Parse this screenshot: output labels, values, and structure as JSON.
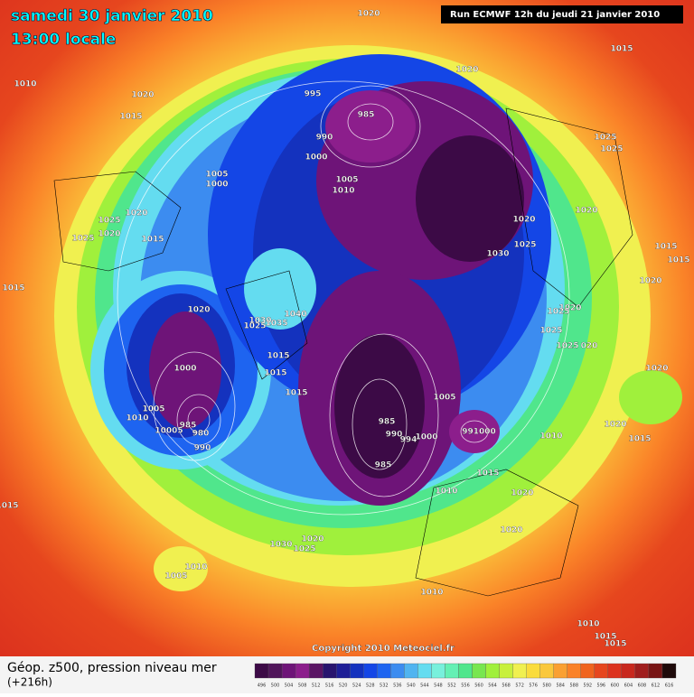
{
  "header": {
    "date": "samedi 30 janvier 2010",
    "time": "13:00 locale",
    "run": "Run ECMWF 12h du jeudi 21 janvier 2010"
  },
  "copyright": "Copyright 2010 Meteociel.fr",
  "legend": {
    "title": "Géop. z500, pression niveau mer",
    "lead": "(+216h)",
    "values": [
      496,
      500,
      504,
      508,
      512,
      516,
      520,
      524,
      528,
      532,
      536,
      540,
      544,
      548,
      552,
      556,
      560,
      564,
      568,
      572,
      576,
      580,
      584,
      588,
      592,
      596,
      600,
      604,
      608,
      612,
      616
    ],
    "colors": [
      "#3c0a46",
      "#50145a",
      "#6e1478",
      "#8c1e8c",
      "#5a1464",
      "#28146e",
      "#1e1e96",
      "#1432be",
      "#1446e6",
      "#1e64f0",
      "#3c8cf0",
      "#50b4f0",
      "#64dcf0",
      "#78f0dc",
      "#64f0b4",
      "#50e68c",
      "#78e650",
      "#a0f03c",
      "#c8f03c",
      "#f0f050",
      "#fadc3c",
      "#fac83c",
      "#faa032",
      "#fa8228",
      "#f0641e",
      "#e6461e",
      "#dc321e",
      "#c8281e",
      "#a01e1e",
      "#781414",
      "#1e0a0a"
    ]
  },
  "isobar_labels": [
    "1020",
    "1010",
    "1020",
    "1015",
    "1020",
    "1015",
    "995",
    "985",
    "990",
    "1000",
    "1005",
    "1000",
    "1005",
    "1010",
    "1025",
    "1025",
    "1020",
    "1020",
    "1025",
    "1030",
    "1025",
    "1020",
    "1025",
    "1020",
    "1015",
    "1015",
    "1015",
    "1015",
    "1020",
    "1020",
    "1030",
    "1035",
    "1040",
    "1025",
    "1020",
    "1025",
    "1025",
    "1025",
    "020",
    "1000",
    "1015",
    "1015",
    "1015",
    "1020",
    "1005",
    "1010",
    "1005",
    "1020",
    "1015",
    "985",
    "980",
    "990",
    "10005",
    "985",
    "990",
    "994",
    "1000",
    "991000",
    "1010",
    "985",
    "1015",
    "1010",
    "1020",
    "1020",
    "1015",
    "1030",
    "1020",
    "1025",
    "1010",
    "1005",
    "1010",
    "1010",
    "1015",
    "1015"
  ]
}
